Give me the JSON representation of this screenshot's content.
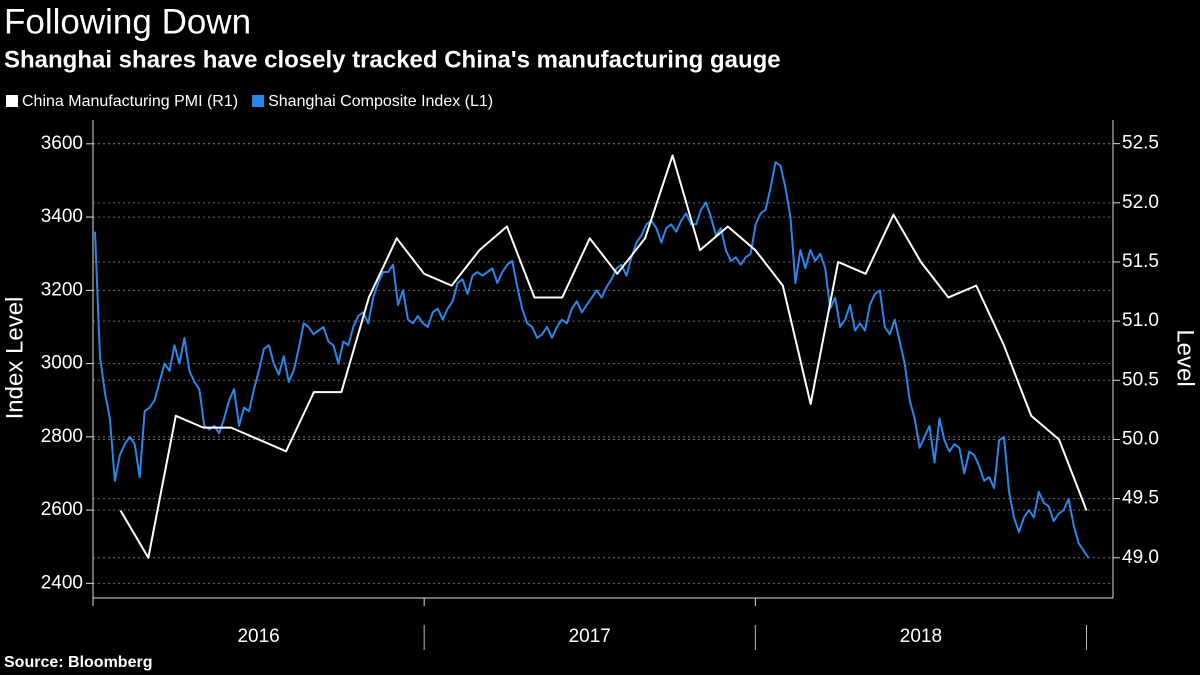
{
  "chart_data": {
    "type": "line",
    "title": "Following Down",
    "subtitle": "Shanghai shares have closely tracked China's manufacturing gauge",
    "ylabel": "Index Level",
    "y2label": "Level",
    "source": "Source: Bloomberg",
    "grid": true,
    "xlim": [
      2016,
      2019.08
    ],
    "xticks": [
      2016,
      2017,
      2018
    ],
    "ylim": [
      2360,
      3665
    ],
    "yticks": [
      2400,
      2600,
      2800,
      3000,
      3200,
      3400,
      3600
    ],
    "y2lim": [
      48.66,
      52.7
    ],
    "y2ticks": [
      {
        "value": 49,
        "label": "49.0"
      },
      49.5,
      {
        "value": 50,
        "label": "50.0"
      },
      50.5,
      {
        "value": 51,
        "label": "51.0"
      },
      51.5,
      {
        "value": 52,
        "label": "52.0"
      },
      52.5
    ],
    "series": [
      {
        "name": "China Manufacturing PMI (R1)",
        "color": "#ffffff",
        "axis": "y2",
        "x": [
          2016.083,
          2016.167,
          2016.25,
          2016.333,
          2016.417,
          2016.5,
          2016.583,
          2016.667,
          2016.75,
          2016.833,
          2016.917,
          2017,
          2017.083,
          2017.167,
          2017.25,
          2017.333,
          2017.417,
          2017.5,
          2017.583,
          2017.667,
          2017.75,
          2017.833,
          2017.917,
          2018,
          2018.083,
          2018.167,
          2018.25,
          2018.333,
          2018.417,
          2018.5,
          2018.583,
          2018.667,
          2018.75,
          2018.833,
          2018.917,
          2019
        ],
        "values": [
          49.4,
          49.0,
          50.2,
          50.1,
          50.1,
          50.0,
          49.9,
          50.4,
          50.4,
          51.2,
          51.7,
          51.4,
          51.3,
          51.6,
          51.8,
          51.2,
          51.2,
          51.7,
          51.4,
          51.7,
          52.4,
          51.6,
          51.8,
          51.6,
          51.3,
          50.3,
          51.5,
          51.4,
          51.9,
          51.5,
          51.2,
          51.3,
          50.8,
          50.2,
          50.0,
          49.4
        ]
      },
      {
        "name": "Shanghai Composite Index (L1)",
        "color": "#2a86e8",
        "axis": "y",
        "x": [
          2016.006,
          2016.021,
          2016.036,
          2016.051,
          2016.066,
          2016.081,
          2016.096,
          2016.111,
          2016.126,
          2016.141,
          2016.156,
          2016.171,
          2016.186,
          2016.201,
          2016.216,
          2016.231,
          2016.246,
          2016.261,
          2016.276,
          2016.291,
          2016.306,
          2016.321,
          2016.336,
          2016.351,
          2016.366,
          2016.381,
          2016.396,
          2016.411,
          2016.426,
          2016.441,
          2016.456,
          2016.471,
          2016.486,
          2016.501,
          2016.516,
          2016.531,
          2016.546,
          2016.561,
          2016.576,
          2016.591,
          2016.606,
          2016.621,
          2016.636,
          2016.651,
          2016.666,
          2016.681,
          2016.696,
          2016.711,
          2016.726,
          2016.741,
          2016.756,
          2016.771,
          2016.786,
          2016.801,
          2016.816,
          2016.831,
          2016.846,
          2016.861,
          2016.876,
          2016.891,
          2016.906,
          2016.921,
          2016.936,
          2016.951,
          2016.966,
          2016.981,
          2016.996,
          2017.011,
          2017.026,
          2017.041,
          2017.056,
          2017.071,
          2017.086,
          2017.101,
          2017.116,
          2017.131,
          2017.146,
          2017.161,
          2017.176,
          2017.191,
          2017.206,
          2017.221,
          2017.236,
          2017.251,
          2017.266,
          2017.281,
          2017.296,
          2017.311,
          2017.326,
          2017.341,
          2017.356,
          2017.371,
          2017.386,
          2017.401,
          2017.416,
          2017.431,
          2017.446,
          2017.461,
          2017.476,
          2017.491,
          2017.506,
          2017.521,
          2017.536,
          2017.551,
          2017.566,
          2017.581,
          2017.596,
          2017.611,
          2017.626,
          2017.641,
          2017.656,
          2017.671,
          2017.686,
          2017.701,
          2017.716,
          2017.731,
          2017.746,
          2017.761,
          2017.776,
          2017.791,
          2017.806,
          2017.821,
          2017.836,
          2017.851,
          2017.866,
          2017.881,
          2017.896,
          2017.911,
          2017.926,
          2017.941,
          2017.956,
          2017.971,
          2017.986,
          2018.001,
          2018.016,
          2018.031,
          2018.046,
          2018.061,
          2018.076,
          2018.091,
          2018.106,
          2018.121,
          2018.136,
          2018.151,
          2018.166,
          2018.181,
          2018.196,
          2018.211,
          2018.226,
          2018.241,
          2018.256,
          2018.271,
          2018.286,
          2018.301,
          2018.316,
          2018.331,
          2018.346,
          2018.361,
          2018.376,
          2018.391,
          2018.406,
          2018.421,
          2018.436,
          2018.451,
          2018.466,
          2018.481,
          2018.496,
          2018.511,
          2018.526,
          2018.541,
          2018.556,
          2018.571,
          2018.586,
          2018.601,
          2018.616,
          2018.631,
          2018.646,
          2018.661,
          2018.676,
          2018.691,
          2018.706,
          2018.721,
          2018.736,
          2018.751,
          2018.766,
          2018.781,
          2018.796,
          2018.811,
          2018.826,
          2018.841,
          2018.856,
          2018.871,
          2018.886,
          2018.901,
          2018.916,
          2018.931,
          2018.946,
          2018.961,
          2018.976,
          2018.991,
          2019.006
        ],
        "values": [
          3360,
          3020,
          2920,
          2850,
          2680,
          2750,
          2780,
          2800,
          2780,
          2690,
          2870,
          2880,
          2900,
          2950,
          3000,
          2980,
          3050,
          3000,
          3070,
          2980,
          2950,
          2930,
          2830,
          2820,
          2830,
          2810,
          2850,
          2900,
          2930,
          2830,
          2880,
          2870,
          2930,
          2980,
          3040,
          3050,
          3000,
          2970,
          3020,
          2950,
          2980,
          3040,
          3110,
          3100,
          3080,
          3090,
          3100,
          3060,
          3050,
          3000,
          3060,
          3050,
          3100,
          3130,
          3140,
          3110,
          3180,
          3220,
          3250,
          3250,
          3270,
          3160,
          3200,
          3120,
          3110,
          3130,
          3110,
          3100,
          3140,
          3150,
          3120,
          3150,
          3170,
          3220,
          3230,
          3190,
          3240,
          3250,
          3240,
          3250,
          3260,
          3220,
          3250,
          3270,
          3280,
          3210,
          3150,
          3110,
          3100,
          3070,
          3080,
          3100,
          3070,
          3100,
          3120,
          3110,
          3150,
          3170,
          3140,
          3160,
          3180,
          3200,
          3180,
          3210,
          3230,
          3260,
          3270,
          3240,
          3290,
          3330,
          3350,
          3380,
          3390,
          3370,
          3330,
          3370,
          3380,
          3360,
          3390,
          3410,
          3380,
          3380,
          3420,
          3440,
          3400,
          3350,
          3370,
          3310,
          3280,
          3290,
          3270,
          3290,
          3300,
          3380,
          3410,
          3420,
          3480,
          3550,
          3540,
          3480,
          3400,
          3220,
          3310,
          3260,
          3310,
          3280,
          3300,
          3260,
          3150,
          3180,
          3100,
          3120,
          3160,
          3090,
          3110,
          3090,
          3160,
          3190,
          3200,
          3100,
          3080,
          3120,
          3060,
          3000,
          2900,
          2850,
          2770,
          2800,
          2830,
          2730,
          2850,
          2790,
          2760,
          2780,
          2770,
          2700,
          2760,
          2750,
          2720,
          2680,
          2690,
          2660,
          2790,
          2800,
          2650,
          2580,
          2540,
          2580,
          2600,
          2580,
          2650,
          2620,
          2610,
          2570,
          2590,
          2600,
          2630,
          2560,
          2510,
          2490,
          2470
        ]
      }
    ]
  }
}
